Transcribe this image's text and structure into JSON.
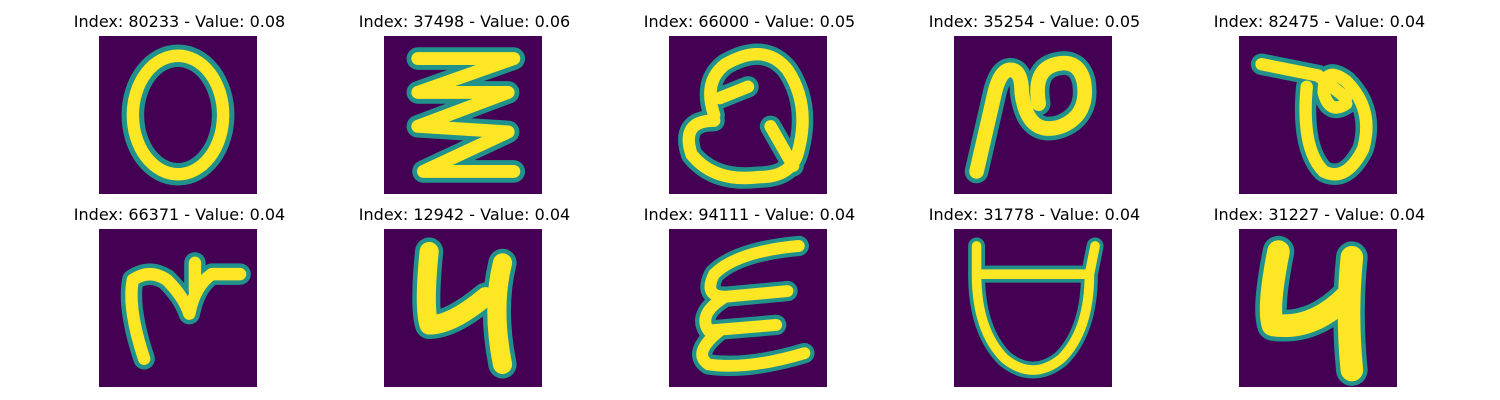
{
  "colors": {
    "background": "#440154",
    "stroke": "#fde725",
    "edge": "#21918c"
  },
  "samples": [
    {
      "title": "Index: 80233 - Value: 0.08",
      "glyph": "ellipse"
    },
    {
      "title": "Index: 37498 - Value: 0.06",
      "glyph": "zigzag"
    },
    {
      "title": "Index: 66000 - Value: 0.05",
      "glyph": "q-loop"
    },
    {
      "title": "Index: 35254 - Value: 0.05",
      "glyph": "n-loop"
    },
    {
      "title": "Index: 82475 - Value: 0.04",
      "glyph": "theta"
    },
    {
      "title": "Index: 66371 - Value: 0.04",
      "glyph": "r-cross"
    },
    {
      "title": "Index: 12942 - Value: 0.04",
      "glyph": "h-like"
    },
    {
      "title": "Index: 94111 - Value: 0.04",
      "glyph": "epsilon"
    },
    {
      "title": "Index: 31778 - Value: 0.04",
      "glyph": "cup"
    },
    {
      "title": "Index: 31227 - Value: 0.04",
      "glyph": "h-like-2"
    }
  ]
}
